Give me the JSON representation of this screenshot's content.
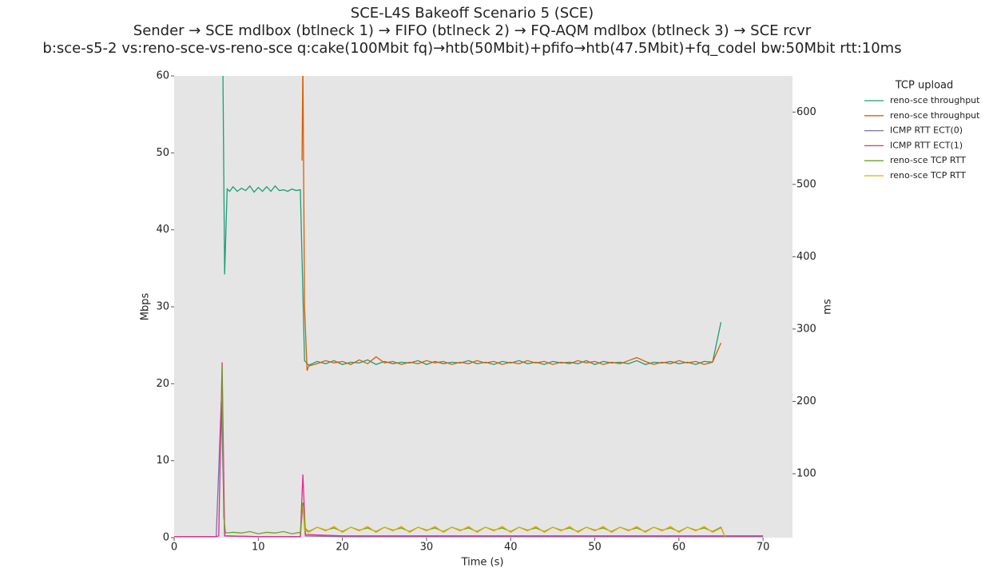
{
  "chart_data": {
    "type": "line",
    "title": [
      "SCE-L4S Bakeoff Scenario 5 (SCE)",
      "Sender → SCE mdlbox (btlneck 1) → FIFO (btlneck 2) → FQ-AQM mdlbox (btlneck 3) → SCE rcvr",
      "b:sce-s5-2 vs:reno-sce-vs-reno-sce q:cake(100Mbit fq)→htb(50Mbit)+pfifo→htb(47.5Mbit)+fq_codel bw:50Mbit rtt:10ms"
    ],
    "xlabel": "Time (s)",
    "ylabel": "Mbps",
    "y2label": "ms",
    "xlim": [
      0,
      73.5
    ],
    "xticks": [
      0,
      10,
      20,
      30,
      40,
      50,
      60,
      70
    ],
    "ylim": [
      0,
      60
    ],
    "yticks": [
      0,
      10,
      20,
      30,
      40,
      50,
      60
    ],
    "y2lim": [
      11.6,
      650
    ],
    "y2ticks": [
      100,
      200,
      300,
      400,
      500,
      600
    ],
    "grid": false,
    "legend_title": "TCP upload",
    "legend": "right",
    "series": [
      {
        "name": "reno-sce throughput",
        "color": "#1b9e77",
        "axis": "y",
        "x": [
          5.8,
          6,
          6.3,
          6.6,
          7,
          7.5,
          8,
          8.5,
          9,
          9.5,
          10,
          10.5,
          11,
          11.5,
          12,
          12.5,
          13,
          13.5,
          14,
          14.5,
          15,
          15.5,
          16,
          17,
          18,
          19,
          20,
          21,
          22,
          23,
          24,
          25,
          26,
          27,
          28,
          29,
          30,
          31,
          32,
          33,
          34,
          35,
          36,
          37,
          38,
          39,
          40,
          41,
          42,
          43,
          44,
          45,
          46,
          47,
          48,
          49,
          50,
          51,
          52,
          53,
          54,
          55,
          56,
          57,
          58,
          59,
          60,
          61,
          62,
          63,
          64,
          65
        ],
        "values": [
          60,
          34.2,
          45.3,
          45,
          45.6,
          45,
          45.4,
          45.1,
          45.7,
          44.9,
          45.5,
          45,
          45.6,
          45,
          45.7,
          45.1,
          45.2,
          45,
          45.3,
          45.1,
          45.2,
          23,
          22.4,
          22.9,
          22.6,
          23,
          22.5,
          22.8,
          22.7,
          23.1,
          22.5,
          22.9,
          22.6,
          22.8,
          22.7,
          23,
          22.5,
          22.9,
          22.6,
          22.8,
          22.7,
          23,
          22.6,
          22.8,
          22.5,
          22.9,
          22.7,
          23,
          22.6,
          22.8,
          22.5,
          22.9,
          22.7,
          22.8,
          22.6,
          23,
          22.5,
          22.9,
          22.7,
          22.8,
          22.6,
          23,
          22.5,
          22.8,
          22.7,
          22.9,
          22.6,
          22.8,
          22.5,
          22.9,
          22.8,
          28
        ]
      },
      {
        "name": "reno-sce throughput",
        "color": "#d95f02",
        "axis": "y",
        "x": [
          15.2,
          15.3,
          15.5,
          15.8,
          16,
          17,
          18,
          19,
          20,
          21,
          22,
          23,
          24,
          25,
          26,
          27,
          28,
          29,
          30,
          31,
          32,
          33,
          34,
          35,
          36,
          37,
          38,
          39,
          40,
          41,
          42,
          43,
          44,
          45,
          46,
          47,
          48,
          49,
          50,
          51,
          52,
          53,
          54,
          55,
          56,
          57,
          58,
          59,
          60,
          61,
          62,
          63,
          64,
          65
        ],
        "values": [
          49,
          62,
          30,
          21.7,
          22.3,
          22.6,
          23,
          22.7,
          22.9,
          22.5,
          23.1,
          22.6,
          23.5,
          22.7,
          22.9,
          22.5,
          22.8,
          22.6,
          23,
          22.7,
          22.9,
          22.5,
          22.8,
          22.6,
          23,
          22.7,
          22.9,
          22.5,
          22.8,
          22.6,
          23,
          22.7,
          22.9,
          22.5,
          22.8,
          22.6,
          23,
          22.7,
          22.9,
          22.5,
          22.8,
          22.6,
          23,
          23.4,
          22.9,
          22.5,
          22.8,
          22.6,
          23,
          22.7,
          22.9,
          22.5,
          22.8,
          25.3
        ]
      },
      {
        "name": "ICMP RTT ECT(0)",
        "color": "#7570b3",
        "axis": "y2",
        "x": [
          0,
          5,
          5.6,
          6,
          10,
          15,
          15.3,
          15.6,
          20,
          30,
          40,
          50,
          60,
          70
        ],
        "values": [
          13,
          13,
          200,
          14,
          13,
          13,
          60,
          14,
          13,
          13,
          13,
          13,
          13,
          13
        ]
      },
      {
        "name": "ICMP RTT ECT(1)",
        "color": "#e7298a",
        "axis": "y2",
        "x": [
          0,
          5,
          5.3,
          5.7,
          6,
          10,
          15,
          15.3,
          15.6,
          20,
          30,
          40,
          50,
          60,
          70
        ],
        "values": [
          13,
          13,
          14,
          254,
          14,
          13,
          13,
          99,
          16,
          14,
          14,
          14,
          14,
          14,
          14
        ]
      },
      {
        "name": "reno-sce TCP RTT",
        "color": "#66a61e",
        "axis": "y2",
        "x": [
          5.7,
          5.9,
          6.1,
          7,
          8,
          9,
          10,
          11,
          12,
          13,
          14,
          15,
          15.3,
          15.6,
          16,
          17,
          18,
          19,
          20,
          21,
          22,
          23,
          24,
          25,
          26,
          27,
          28,
          29,
          30,
          31,
          32,
          33,
          34,
          35,
          36,
          37,
          38,
          39,
          40,
          41,
          42,
          43,
          44,
          45,
          46,
          47,
          48,
          49,
          50,
          51,
          52,
          53,
          54,
          55,
          56,
          57,
          58,
          59,
          60,
          61,
          62,
          63,
          64,
          65,
          65.5
        ],
        "values": [
          250,
          40,
          18,
          19,
          18,
          20,
          17,
          19,
          18,
          20,
          17,
          19,
          60,
          24,
          20,
          26,
          22,
          25,
          20,
          26,
          22,
          25,
          20,
          26,
          22,
          25,
          20,
          26,
          22,
          25,
          20,
          26,
          22,
          25,
          20,
          26,
          22,
          25,
          20,
          26,
          22,
          25,
          20,
          26,
          22,
          25,
          20,
          26,
          22,
          25,
          20,
          26,
          22,
          25,
          20,
          26,
          22,
          25,
          20,
          26,
          22,
          25,
          20,
          26,
          12
        ]
      },
      {
        "name": "reno-sce TCP RTT",
        "color": "#e6ab02",
        "axis": "y2",
        "x": [
          15.3,
          15.5,
          16,
          17,
          18,
          19,
          20,
          21,
          22,
          23,
          24,
          25,
          26,
          27,
          28,
          29,
          30,
          31,
          32,
          33,
          34,
          35,
          36,
          37,
          38,
          39,
          40,
          41,
          42,
          43,
          44,
          45,
          46,
          47,
          48,
          49,
          50,
          51,
          52,
          53,
          54,
          55,
          56,
          57,
          58,
          59,
          60,
          61,
          62,
          63,
          64,
          65,
          65.5
        ],
        "values": [
          55,
          22,
          19,
          26,
          21,
          27,
          19,
          26,
          21,
          27,
          19,
          26,
          21,
          27,
          19,
          26,
          21,
          27,
          19,
          26,
          21,
          27,
          19,
          26,
          21,
          27,
          19,
          26,
          21,
          27,
          19,
          26,
          21,
          27,
          19,
          26,
          21,
          27,
          19,
          26,
          21,
          27,
          19,
          26,
          21,
          27,
          19,
          26,
          21,
          27,
          19,
          25,
          13
        ]
      }
    ]
  }
}
